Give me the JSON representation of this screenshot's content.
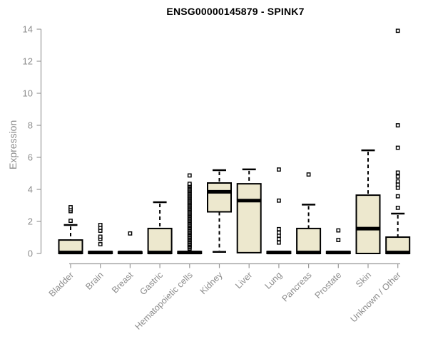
{
  "chart_data": {
    "type": "boxplot",
    "title": "ENSG00000145879 - SPINK7",
    "ylabel": "Expression",
    "xlabel": "",
    "ylim": [
      0,
      14
    ],
    "yticks": [
      0,
      2,
      4,
      6,
      8,
      10,
      12,
      14
    ],
    "grid": false,
    "legend": "none",
    "box_fill": "#EDE8CE",
    "box_stroke": "#000000",
    "axis_color": "#999999",
    "label_color": "#8C8C8C",
    "categories": [
      "Bladder",
      "Brain",
      "Breast",
      "Gastric",
      "Hematopoietic cells",
      "Kidney",
      "Liver",
      "Lung",
      "Pancreas",
      "Prostate",
      "Skin",
      "Unknown / Other"
    ],
    "series": [
      {
        "name": "Bladder",
        "q1": 0,
        "median": 0.06,
        "q3": 0.84,
        "whisker_low": null,
        "whisker_high": 1.78,
        "outliers": [
          2.04,
          2.64,
          2.76,
          2.89
        ]
      },
      {
        "name": "Brain",
        "q1": 0,
        "median": 0.06,
        "q3": 0.12,
        "whisker_low": null,
        "whisker_high": null,
        "outliers": [
          0.58,
          0.9,
          1.05,
          1.42,
          1.6,
          1.78
        ]
      },
      {
        "name": "Breast",
        "q1": 0,
        "median": 0.06,
        "q3": 0.1,
        "whisker_low": null,
        "whisker_high": null,
        "outliers": [
          1.25
        ]
      },
      {
        "name": "Gastric",
        "q1": 0,
        "median": 0.06,
        "q3": 1.56,
        "whisker_low": null,
        "whisker_high": 3.2,
        "outliers": []
      },
      {
        "name": "Hematopoietic cells",
        "q1": 0,
        "median": 0.06,
        "q3": 0.12,
        "whisker_low": null,
        "whisker_high": null,
        "outliers": [
          0.3,
          0.38,
          0.45,
          0.53,
          0.6,
          0.68,
          0.75,
          0.83,
          0.9,
          0.98,
          1.05,
          1.13,
          1.2,
          1.28,
          1.35,
          1.43,
          1.5,
          1.58,
          1.65,
          1.73,
          1.8,
          1.88,
          1.95,
          2.03,
          2.1,
          2.18,
          2.25,
          2.33,
          2.4,
          2.48,
          2.55,
          2.63,
          2.7,
          2.78,
          2.85,
          2.93,
          3.0,
          3.08,
          3.15,
          3.23,
          3.3,
          3.38,
          3.45,
          3.53,
          3.6,
          3.68,
          3.75,
          3.83,
          3.9,
          3.98,
          4.05,
          4.13,
          4.2,
          4.28,
          4.35,
          4.87
        ]
      },
      {
        "name": "Kidney",
        "q1": 2.6,
        "median": 3.85,
        "q3": 4.4,
        "whisker_low": 0.1,
        "whisker_high": 5.2,
        "outliers": []
      },
      {
        "name": "Liver",
        "q1": 0.05,
        "median": 3.3,
        "q3": 4.35,
        "whisker_low": null,
        "whisker_high": 5.25,
        "outliers": []
      },
      {
        "name": "Lung",
        "q1": 0,
        "median": 0.06,
        "q3": 0.12,
        "whisker_low": null,
        "whisker_high": null,
        "outliers": [
          0.68,
          0.9,
          1.11,
          1.3,
          1.52,
          3.3,
          5.24
        ]
      },
      {
        "name": "Pancreas",
        "q1": 0,
        "median": 0.06,
        "q3": 1.56,
        "whisker_low": null,
        "whisker_high": 3.05,
        "outliers": [
          4.93
        ]
      },
      {
        "name": "Prostate",
        "q1": 0,
        "median": 0.06,
        "q3": 0.12,
        "whisker_low": null,
        "whisker_high": null,
        "outliers": [
          0.84,
          1.44
        ]
      },
      {
        "name": "Skin",
        "q1": 0,
        "median": 1.55,
        "q3": 3.64,
        "whisker_low": null,
        "whisker_high": 6.44,
        "outliers": []
      },
      {
        "name": "Unknown / Other",
        "q1": 0,
        "median": 0.06,
        "q3": 1.02,
        "whisker_low": null,
        "whisker_high": 2.49,
        "outliers": [
          2.85,
          3.57,
          4.1,
          4.3,
          4.5,
          4.8,
          5.05,
          6.6,
          8.0,
          13.9
        ]
      }
    ]
  }
}
